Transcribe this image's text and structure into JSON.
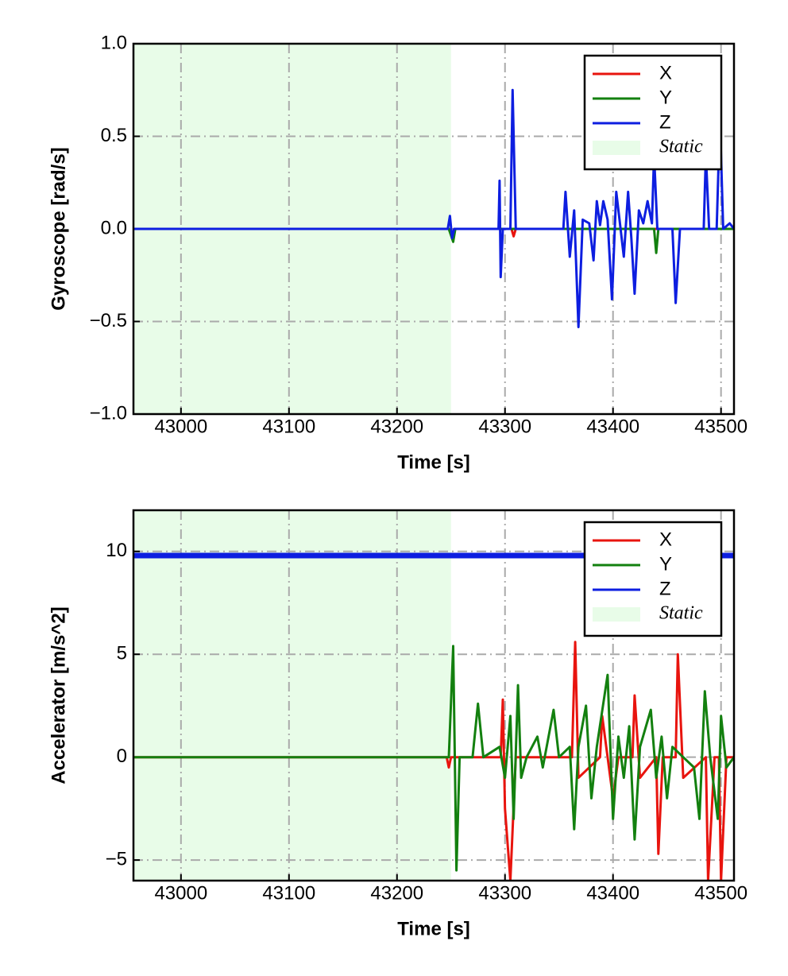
{
  "chart_data": [
    {
      "type": "line",
      "xlabel": "Time [s]",
      "ylabel": "Gyroscope [rad/s]",
      "xlim": [
        42956,
        43512
      ],
      "ylim": [
        -1,
        1
      ],
      "xticks": [
        43000,
        43100,
        43200,
        43300,
        43400,
        43500
      ],
      "yticks": [
        {
          "value": -1,
          "label": "−1.0"
        },
        {
          "value": -0.5,
          "label": "−0.5"
        },
        {
          "value": 0,
          "label": "0.0"
        },
        0.5,
        {
          "value": 1,
          "label": "1.0"
        }
      ],
      "grid": true,
      "legend": "upper right",
      "span": {
        "name": "Static",
        "color": "#e8fce8",
        "x": [
          42956,
          43250
        ]
      },
      "series": [
        {
          "name": "X",
          "color": "#e8140e",
          "x": [
            42956,
            43248,
            43251,
            43253,
            43306,
            43308,
            43310,
            43512
          ],
          "values": [
            0,
            0,
            -0.04,
            0,
            0,
            -0.04,
            0,
            0
          ]
        },
        {
          "name": "Y",
          "color": "#13800f",
          "x": [
            42956,
            43248,
            43252,
            43254,
            43438,
            43440,
            43442,
            43512
          ],
          "values": [
            0,
            0,
            -0.07,
            0,
            0,
            -0.13,
            0,
            0
          ]
        },
        {
          "name": "Z",
          "color": "#0d1ee0",
          "x": [
            42956,
            43247,
            43249,
            43251,
            43253,
            43294,
            43295,
            43296,
            43298,
            43305,
            43307,
            43310,
            43354,
            43356,
            43360,
            43364,
            43368,
            43372,
            43378,
            43382,
            43385,
            43388,
            43391,
            43395,
            43399,
            43403,
            43406,
            43410,
            43414,
            43417,
            43420,
            43424,
            43428,
            43432,
            43436,
            43438,
            43441,
            43455,
            43458,
            43462,
            43484,
            43486,
            43489,
            43496,
            43499,
            43502,
            43508,
            43512
          ],
          "values": [
            0,
            0,
            0.07,
            -0.05,
            0,
            0,
            0.26,
            -0.26,
            0,
            0,
            0.75,
            0,
            0,
            0.2,
            -0.15,
            0.1,
            -0.53,
            0.05,
            0.03,
            -0.17,
            0.15,
            0.02,
            0.15,
            0.05,
            -0.38,
            0.2,
            0.05,
            -0.15,
            0.2,
            -0.05,
            -0.35,
            0.1,
            0.03,
            0.15,
            0.03,
            0.4,
            0,
            0,
            -0.4,
            0,
            0,
            0.4,
            0,
            0,
            0.6,
            0,
            0.03,
            0
          ]
        }
      ]
    },
    {
      "type": "line",
      "xlabel": "Time [s]",
      "ylabel": "Accelerator [m/s^2]",
      "xlim": [
        42956,
        43512
      ],
      "ylim": [
        -6,
        12
      ],
      "xticks": [
        43000,
        43100,
        43200,
        43300,
        43400,
        43500
      ],
      "yticks": [
        {
          "value": -5,
          "label": "−5"
        },
        0,
        5,
        10
      ],
      "grid": true,
      "legend": "upper right",
      "span": {
        "name": "Static",
        "color": "#e8fce8",
        "x": [
          42956,
          43250
        ]
      },
      "series": [
        {
          "name": "X",
          "color": "#e8140e",
          "x": [
            42956,
            43246,
            43248,
            43250,
            43296,
            43298,
            43300,
            43305,
            43310,
            43340,
            43362,
            43365,
            43368,
            43388,
            43390,
            43400,
            43405,
            43418,
            43420,
            43425,
            43440,
            43442,
            43446,
            43458,
            43460,
            43465,
            43486,
            43488,
            43494,
            43498,
            43500,
            43505,
            43512
          ],
          "values": [
            0,
            0,
            -0.5,
            0,
            0,
            2.8,
            -2.5,
            -6,
            0,
            0,
            0,
            5.6,
            -1,
            0,
            2,
            -2,
            0,
            0,
            3,
            -1,
            0,
            -4.7,
            0,
            0,
            5,
            -1,
            0,
            -6,
            0,
            0,
            -6,
            0,
            0
          ]
        },
        {
          "name": "Y",
          "color": "#13800f",
          "x": [
            42956,
            43248,
            43250,
            43252,
            43255,
            43258,
            43270,
            43275,
            43280,
            43295,
            43300,
            43305,
            43308,
            43312,
            43315,
            43320,
            43330,
            43335,
            43345,
            43350,
            43360,
            43364,
            43368,
            43375,
            43380,
            43385,
            43395,
            43400,
            43405,
            43410,
            43415,
            43420,
            43425,
            43435,
            43440,
            43445,
            43450,
            43455,
            43465,
            43475,
            43480,
            43485,
            43490,
            43497,
            43500,
            43505,
            43512
          ],
          "values": [
            0,
            0,
            2.7,
            5.4,
            -5.5,
            0,
            0,
            2.6,
            0,
            0.5,
            -1,
            2,
            -3,
            3.5,
            -1,
            0,
            1,
            -0.5,
            2.3,
            0,
            0.5,
            -3.5,
            0.5,
            2.5,
            -2,
            0.5,
            4,
            -3,
            1,
            -1,
            1.5,
            -4,
            0.5,
            2.3,
            -1,
            1,
            -2,
            0.5,
            0,
            -0.5,
            -3,
            3.2,
            0,
            -3,
            2,
            -0.5,
            0
          ]
        },
        {
          "name": "Z",
          "color": "#0d1ee0",
          "x": [
            42956,
            43512
          ],
          "values": [
            9.8,
            9.8
          ]
        }
      ]
    }
  ]
}
